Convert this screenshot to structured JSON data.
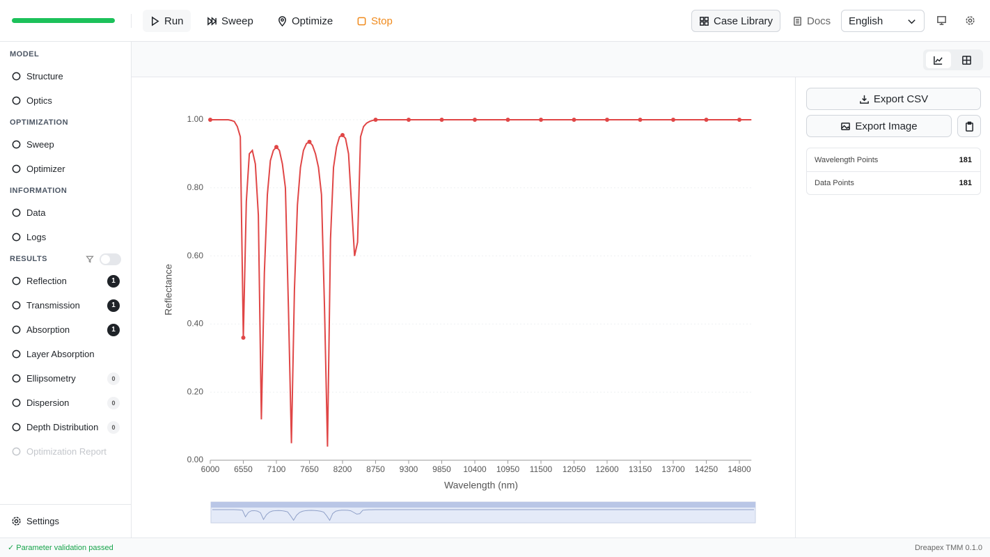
{
  "toolbar": {
    "run": "Run",
    "sweep": "Sweep",
    "optimize": "Optimize",
    "stop": "Stop",
    "case_library": "Case Library",
    "docs": "Docs",
    "language": "English"
  },
  "sidebar": {
    "sections": [
      {
        "title": "MODEL",
        "items": [
          {
            "label": "Structure"
          },
          {
            "label": "Optics"
          }
        ]
      },
      {
        "title": "OPTIMIZATION",
        "items": [
          {
            "label": "Sweep"
          },
          {
            "label": "Optimizer"
          }
        ]
      },
      {
        "title": "INFORMATION",
        "items": [
          {
            "label": "Data"
          },
          {
            "label": "Logs"
          }
        ]
      },
      {
        "title": "RESULTS",
        "items": [
          {
            "label": "Reflection",
            "badge": 1
          },
          {
            "label": "Transmission",
            "badge": 1
          },
          {
            "label": "Absorption",
            "badge": 1
          },
          {
            "label": "Layer Absorption"
          },
          {
            "label": "Ellipsometry",
            "badge": 0
          },
          {
            "label": "Dispersion",
            "badge": 0
          },
          {
            "label": "Depth Distribution",
            "badge": 0
          },
          {
            "label": "Optimization Report",
            "disabled": true
          }
        ]
      }
    ],
    "settings": "Settings"
  },
  "export": {
    "csv": "Export CSV",
    "image": "Export Image"
  },
  "stats": [
    {
      "label": "Wavelength Points",
      "value": 181
    },
    {
      "label": "Data Points",
      "value": 181
    }
  ],
  "status": {
    "message": "Parameter validation passed",
    "version": "Dreapex TMM 0.1.0"
  },
  "chart_data": {
    "type": "line",
    "x_label": "Wavelength (nm)",
    "y_label": "Reflectance",
    "color": "#e04646",
    "grid": true,
    "xlim": [
      6000,
      15000
    ],
    "ylim": [
      0,
      1
    ],
    "xticks": [
      6000,
      6550,
      7100,
      7650,
      8200,
      8750,
      9300,
      9850,
      10400,
      10950,
      11500,
      12050,
      12600,
      13150,
      13700,
      14250,
      14800
    ],
    "yticks": [
      {
        "value": 0,
        "label": "0.00"
      },
      {
        "value": 0.2,
        "label": "0.20"
      },
      {
        "value": 0.4,
        "label": "0.40"
      },
      {
        "value": 0.6,
        "label": "0.60"
      },
      {
        "value": 0.8,
        "label": "0.80"
      },
      {
        "value": 1,
        "label": "1.00"
      }
    ],
    "x": [
      6000,
      6050,
      6100,
      6150,
      6200,
      6250,
      6300,
      6350,
      6400,
      6450,
      6500,
      6550,
      6600,
      6650,
      6700,
      6750,
      6800,
      6850,
      6900,
      6950,
      7000,
      7050,
      7100,
      7150,
      7200,
      7250,
      7300,
      7350,
      7400,
      7450,
      7500,
      7550,
      7600,
      7650,
      7700,
      7750,
      7800,
      7850,
      7900,
      7950,
      8000,
      8050,
      8100,
      8150,
      8200,
      8250,
      8300,
      8350,
      8400,
      8450,
      8500,
      8550,
      8600,
      8650,
      8700,
      8750,
      8800,
      8850,
      8900,
      8950,
      9000,
      9050,
      9100,
      9150,
      9200,
      9250,
      9300,
      9350,
      9400,
      9450,
      9500,
      9550,
      9600,
      9650,
      9700,
      9750,
      9800,
      9850,
      9900,
      9950,
      10000,
      10050,
      10100,
      10150,
      10200,
      10250,
      10300,
      10350,
      10400,
      10450,
      10500,
      10550,
      10600,
      10650,
      10700,
      10750,
      10800,
      10850,
      10900,
      10950,
      11000,
      11050,
      11100,
      11150,
      11200,
      11250,
      11300,
      11350,
      11400,
      11450,
      11500,
      11550,
      11600,
      11650,
      11700,
      11750,
      11800,
      11850,
      11900,
      11950,
      12000,
      12050,
      12100,
      12150,
      12200,
      12250,
      12300,
      12350,
      12400,
      12450,
      12500,
      12550,
      12600,
      12650,
      12700,
      12750,
      12800,
      12850,
      12900,
      12950,
      13000,
      13050,
      13100,
      13150,
      13200,
      13250,
      13300,
      13350,
      13400,
      13450,
      13500,
      13550,
      13600,
      13650,
      13700,
      13750,
      13800,
      13850,
      13900,
      13950,
      14000,
      14050,
      14100,
      14150,
      14200,
      14250,
      14300,
      14350,
      14400,
      14450,
      14500,
      14550,
      14600,
      14650,
      14700,
      14750,
      14800,
      14850,
      14900,
      14950,
      15000
    ],
    "values": [
      1,
      1,
      1,
      1,
      1,
      1,
      1,
      0.998,
      0.995,
      0.98,
      0.95,
      0.36,
      0.76,
      0.9,
      0.91,
      0.87,
      0.72,
      0.12,
      0.55,
      0.78,
      0.88,
      0.91,
      0.92,
      0.91,
      0.87,
      0.8,
      0.45,
      0.05,
      0.5,
      0.75,
      0.86,
      0.91,
      0.93,
      0.935,
      0.925,
      0.9,
      0.86,
      0.78,
      0.45,
      0.04,
      0.65,
      0.86,
      0.92,
      0.95,
      0.955,
      0.945,
      0.9,
      0.75,
      0.6,
      0.64,
      0.95,
      0.98,
      0.99,
      0.995,
      0.998,
      1,
      1,
      1,
      1,
      1,
      1,
      1,
      1,
      1,
      1,
      1,
      1,
      1,
      1,
      1,
      1,
      1,
      1,
      1,
      1,
      1,
      1,
      1,
      1,
      1,
      1,
      1,
      1,
      1,
      1,
      1,
      1,
      1,
      1,
      1,
      1,
      1,
      1,
      1,
      1,
      1,
      1,
      1,
      1,
      1,
      1,
      1,
      1,
      1,
      1,
      1,
      1,
      1,
      1,
      1,
      1,
      1,
      1,
      1,
      1,
      1,
      1,
      1,
      1,
      1,
      1,
      1,
      1,
      1,
      1,
      1,
      1,
      1,
      1,
      1,
      1,
      1,
      1,
      1,
      1,
      1,
      1,
      1,
      1,
      1,
      1,
      1,
      1,
      1,
      1,
      1,
      1,
      1,
      1,
      1,
      1,
      1,
      1,
      1,
      1,
      1,
      1,
      1,
      1,
      1,
      1,
      1,
      1,
      1,
      1,
      1,
      1,
      1,
      1,
      1,
      1,
      1,
      1,
      1,
      1,
      1,
      1,
      1,
      1,
      1,
      1
    ]
  }
}
